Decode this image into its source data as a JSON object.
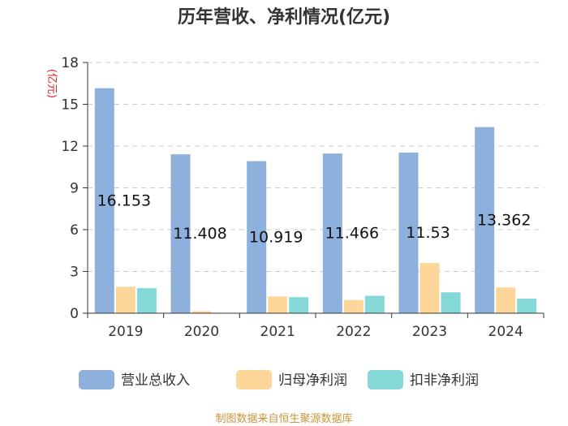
{
  "chart_data": {
    "type": "bar",
    "title": "历年营收、净利情况(亿元)",
    "ylabel": "(亿元)",
    "xlabel": "",
    "ylim": [
      0,
      18
    ],
    "yticks": [
      0,
      3,
      6,
      9,
      12,
      15,
      18
    ],
    "grid": true,
    "categories": [
      "2019",
      "2020",
      "2021",
      "2022",
      "2023",
      "2024"
    ],
    "series": [
      {
        "name": "营业总收入",
        "values": [
          16.153,
          11.408,
          10.919,
          11.466,
          11.53,
          13.362
        ],
        "color": "#8eb0dc"
      },
      {
        "name": "归母净利润",
        "values": [
          1.9,
          0.15,
          1.2,
          0.95,
          3.6,
          1.85
        ],
        "color": "#fdd79a"
      },
      {
        "name": "扣非净利润",
        "values": [
          1.8,
          0.03,
          1.15,
          1.25,
          1.5,
          1.05
        ],
        "color": "#84d8d8"
      }
    ],
    "data_labels": [
      "16.153",
      "11.408",
      "10.919",
      "11.466",
      "11.53",
      "13.362"
    ],
    "legend_position": "bottom",
    "source": "制图数据来自恒生聚源数据库"
  }
}
